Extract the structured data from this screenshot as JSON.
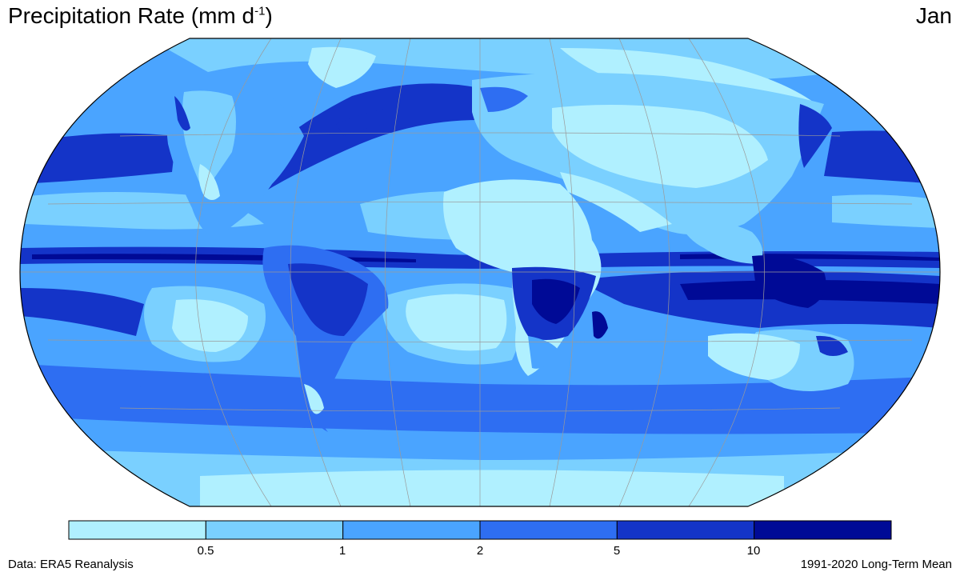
{
  "title": {
    "text_main": "Precipitation Rate (mm d",
    "superscript": "-1",
    "text_close": ")"
  },
  "month": "Jan",
  "map": {
    "projection": "Robinson",
    "variable": "Precipitation Rate",
    "units": "mm d-1"
  },
  "colorbar": {
    "colors": [
      "#b0f0ff",
      "#7ad0ff",
      "#4aa4ff",
      "#2e6ef2",
      "#1434c8",
      "#000a96"
    ],
    "ticks": [
      "0.5",
      "1",
      "2",
      "5",
      "10"
    ]
  },
  "footer": {
    "left": "Data: ERA5 Reanalysis",
    "right": "1991-2020 Long-Term Mean"
  }
}
